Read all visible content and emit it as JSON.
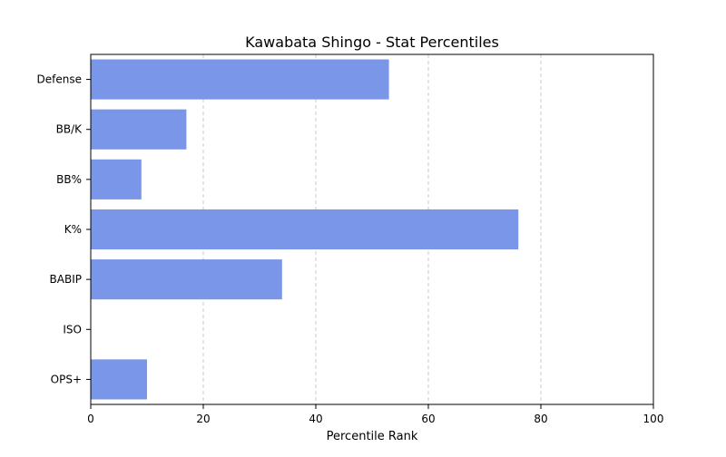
{
  "chart_data": {
    "type": "bar",
    "orientation": "horizontal",
    "title": "Kawabata Shingo - Stat Percentiles",
    "xlabel": "Percentile Rank",
    "ylabel": "",
    "xlim": [
      0,
      100
    ],
    "xticks": [
      "0",
      "20",
      "40",
      "60",
      "80",
      "100"
    ],
    "categories": [
      "Defense",
      "BB/K",
      "BB%",
      "K%",
      "BABIP",
      "ISO",
      "OPS+"
    ],
    "values": [
      53,
      17,
      9,
      76,
      34,
      0,
      10
    ],
    "bar_color": "#7996e9",
    "grid": "x-dashed",
    "legend": "none"
  }
}
